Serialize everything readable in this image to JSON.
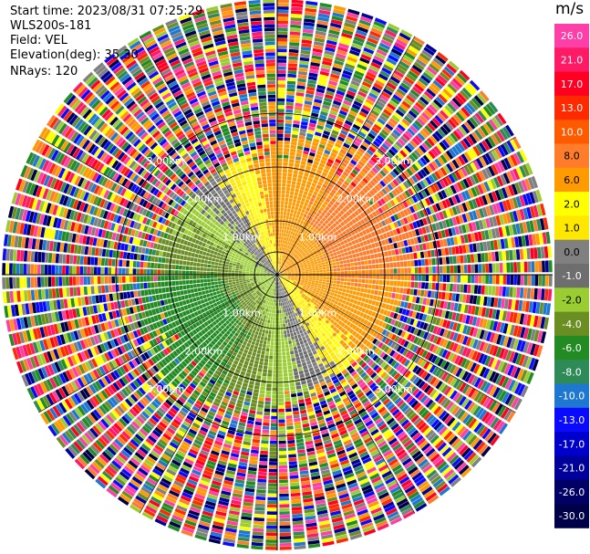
{
  "header": {
    "start_time": "Start time: 2023/08/31 07:25:29",
    "instrument": "WLS200s-181",
    "field": "Field: VEL",
    "elevation": "Elevation(deg): 35.30",
    "nrays": "NRays: 120"
  },
  "colorbar": {
    "unit": "m/s",
    "ticks": [
      "26.0",
      "21.0",
      "17.0",
      "13.0",
      "10.0",
      "8.0",
      "6.0",
      "2.0",
      "1.0",
      "0.0",
      "-1.0",
      "-2.0",
      "-4.0",
      "-6.0",
      "-8.0",
      "-10.0",
      "-13.0",
      "-17.0",
      "-21.0",
      "-26.0",
      "-30.0"
    ],
    "colors": [
      "#ff3fa8",
      "#ff1a66",
      "#ff0022",
      "#ff2a00",
      "#ff5a00",
      "#ff7d2a",
      "#ff9a00",
      "#ffff00",
      "#ffe800",
      "#808080",
      "#6e6e6e",
      "#9acd32",
      "#6b8e23",
      "#228b22",
      "#2e8b57",
      "#1e78d2",
      "#0a0aff",
      "#0000cc",
      "#00009a",
      "#000066",
      "#00004a"
    ]
  },
  "chart_data": {
    "type": "heatmap",
    "title": "",
    "field": "VEL",
    "unit": "m/s",
    "nrays": 120,
    "elevation_deg": 35.3,
    "start_time": "2023/08/31 07:25:29",
    "range_rings_km": [
      1.0,
      2.0,
      3.0
    ],
    "ring_label_text": [
      "1.00km",
      "2.00km",
      "3.00km"
    ],
    "colorbar_ticks": [
      26,
      21,
      17,
      13,
      10,
      8,
      6,
      2,
      1,
      0,
      -1,
      -2,
      -4,
      -6,
      -8,
      -10,
      -13,
      -17,
      -21,
      -26,
      -30
    ],
    "velocity_pattern": {
      "north-east": "positive 2 to 8 m/s (yellow to orange)",
      "south-west": "negative -2 to -8 m/s (olive to green)",
      "near 0": "grey band running west-northwest to east-southeast",
      "beyond ~2.5 km": "noisy random velocities"
    }
  }
}
